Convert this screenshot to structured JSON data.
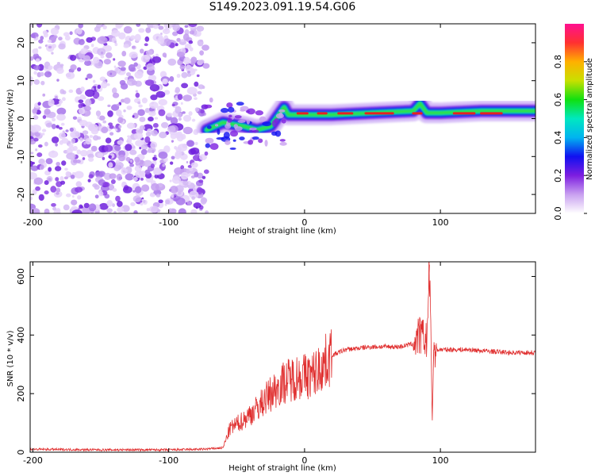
{
  "title": "S149.2023.091.19.54.G06",
  "chart_data": [
    {
      "type": "heatmap",
      "title": "S149.2023.091.19.54.G06",
      "xlabel": "Height of straight line (km)",
      "ylabel": "Frequency (Hz)",
      "xlim": [
        -202,
        170
      ],
      "ylim": [
        -25,
        25
      ],
      "xticks": [
        -200,
        -100,
        0,
        100
      ],
      "yticks": [
        -20,
        -10,
        0,
        10,
        20
      ],
      "grid": false,
      "colorbar": {
        "label": "Normalized spectral amplitude",
        "range": [
          0,
          1
        ],
        "ticks": [
          "0.0",
          "0.2",
          "0.4",
          "0.6",
          "0.8"
        ],
        "colors": [
          "#ffffff",
          "#c9a0f0",
          "#7d1ee0",
          "#1010f0",
          "#00b4f0",
          "#00e8c0",
          "#10e010",
          "#c8e000",
          "#ffb000",
          "#ff3030",
          "#ff1090"
        ]
      },
      "regions": [
        {
          "x": [
            -202,
            -72
          ],
          "note": "noise",
          "amplitude": 0.15
        },
        {
          "x": [
            -72,
            -15
          ],
          "freq_hz": [
            -5,
            2
          ],
          "amplitude": 0.6
        },
        {
          "x": [
            -15,
            170
          ],
          "freq_hz": 1.5,
          "amplitude": 0.95
        }
      ],
      "signal_line": {
        "x": [
          -72,
          -60,
          -45,
          -35,
          -25,
          -15,
          -12,
          -5,
          20,
          50,
          80,
          85,
          90,
          100,
          130,
          170
        ],
        "freq": [
          -3,
          -1,
          -2,
          -3,
          -2,
          3,
          1,
          1,
          1,
          1.5,
          2,
          4,
          1.5,
          1.5,
          2,
          2
        ]
      }
    },
    {
      "type": "line",
      "xlabel": "Height of straight line (km)",
      "ylabel": "SNR (10 * v/v)",
      "xlim": [
        -202,
        170
      ],
      "ylim": [
        0,
        650
      ],
      "xticks": [
        -200,
        -100,
        0,
        100
      ],
      "yticks": [
        0,
        200,
        400,
        600
      ],
      "grid": false,
      "color": "#e03030",
      "series": [
        {
          "x": [
            -202,
            -150,
            -100,
            -75,
            -60,
            -55,
            -45,
            -35,
            -25,
            -15,
            -5,
            5,
            10,
            20,
            30,
            50,
            70,
            80,
            85,
            90,
            92,
            94,
            95,
            97,
            100,
            120,
            150,
            170
          ],
          "values": [
            10,
            8,
            8,
            10,
            15,
            80,
            110,
            150,
            200,
            240,
            260,
            260,
            280,
            330,
            350,
            360,
            360,
            370,
            400,
            380,
            640,
            110,
            350,
            350,
            350,
            350,
            340,
            340
          ]
        }
      ]
    }
  ]
}
